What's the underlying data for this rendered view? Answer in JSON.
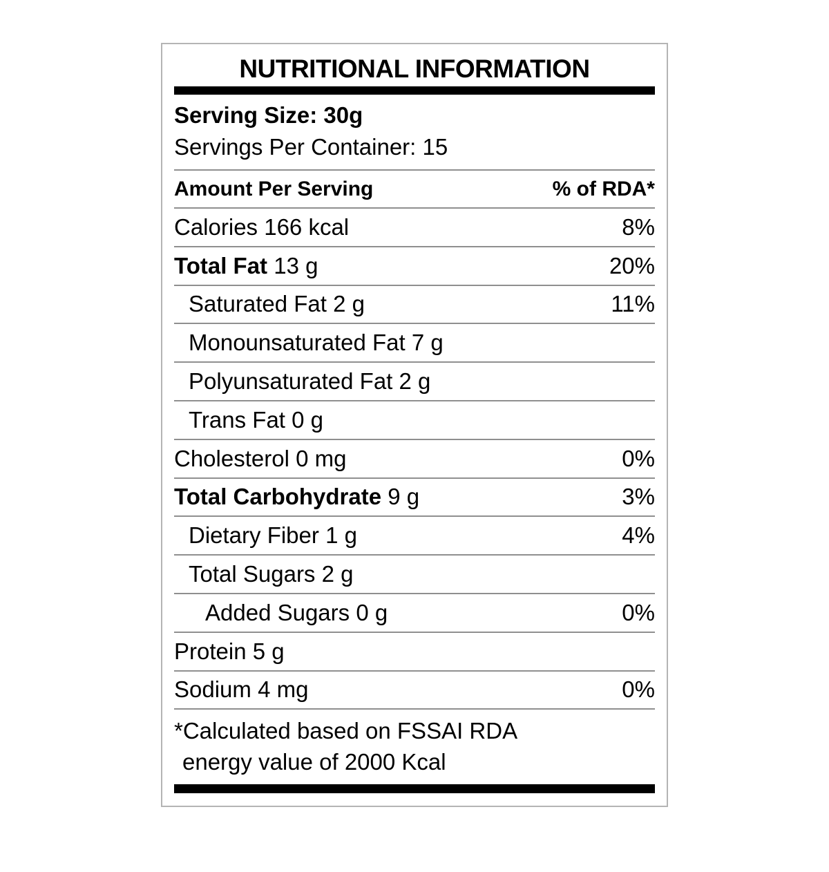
{
  "label": {
    "title": "NUTRITIONAL INFORMATION",
    "serving_size": "Serving Size: 30g",
    "servings_per_container": "Servings Per Container: 15",
    "header": {
      "left": "Amount Per Serving",
      "right": "% of RDA*"
    },
    "rows": [
      {
        "name": "Calories",
        "amount": "166 kcal",
        "rda": "8%"
      },
      {
        "name": "Total Fat",
        "amount": "13 g",
        "rda": "20%"
      },
      {
        "name": "Saturated Fat",
        "amount": "2 g",
        "rda": "11%"
      },
      {
        "name": "Monounsaturated Fat",
        "amount": "7 g",
        "rda": ""
      },
      {
        "name": "Polyunsaturated Fat",
        "amount": "2 g",
        "rda": ""
      },
      {
        "name": "Trans Fat",
        "amount": "0 g",
        "rda": ""
      },
      {
        "name": "Cholesterol",
        "amount": "0 mg",
        "rda": "0%"
      },
      {
        "name": "Total Carbohydrate",
        "amount": "9 g",
        "rda": "3%"
      },
      {
        "name": "Dietary Fiber",
        "amount": "1 g",
        "rda": "4%"
      },
      {
        "name": "Total Sugars",
        "amount": "2 g",
        "rda": ""
      },
      {
        "name": "Added Sugars",
        "amount": "0 g",
        "rda": "0%"
      },
      {
        "name": "Protein",
        "amount": "5 g",
        "rda": ""
      },
      {
        "name": "Sodium",
        "amount": "4 mg",
        "rda": "0%"
      }
    ],
    "footnote_line1": "*Calculated based on FSSAI RDA",
    "footnote_line2": "energy value of 2000 Kcal",
    "colors": {
      "text": "#000000",
      "divider_bar": "#000000",
      "hairline": "#8f8f8f",
      "border": "#b4b4b4",
      "background": "#ffffff"
    }
  }
}
